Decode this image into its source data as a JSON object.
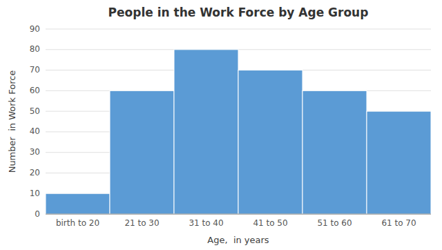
{
  "chart_data": {
    "type": "bar",
    "title": "People in the Work Force by Age Group",
    "xlabel": "Age,  in years",
    "ylabel": "Number  in Work Force",
    "categories": [
      "birth to 20",
      "21 to 30",
      "31 to 40",
      "41 to 50",
      "51 to 60",
      "61 to 70"
    ],
    "values": [
      10,
      60,
      80,
      70,
      60,
      50
    ],
    "color": "#5B9BD5",
    "ylim": [
      0,
      90
    ],
    "yticks": [
      0,
      10,
      20,
      30,
      40,
      50,
      60,
      70,
      80,
      90
    ],
    "grid": true
  }
}
